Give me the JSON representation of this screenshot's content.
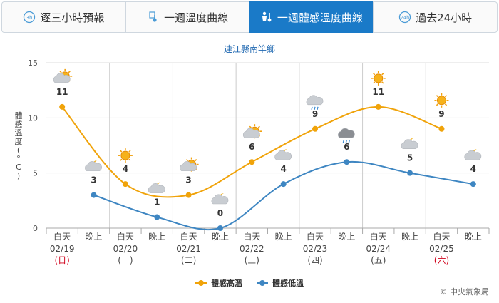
{
  "tabs": [
    {
      "label": "逐三小時預報",
      "icon": "clock-3h-icon",
      "active": false
    },
    {
      "label": "一週溫度曲線",
      "icon": "thermometer-icon",
      "active": false
    },
    {
      "label": "一週體感溫度曲線",
      "icon": "feels-like-thermometer-icon",
      "active": true
    },
    {
      "label": "過去24小時",
      "icon": "clock-24h-icon",
      "active": false
    }
  ],
  "credit": "© 中央氣象局",
  "colors": {
    "high": "#f0a30a",
    "low": "#3e86c2",
    "accent": "#1a7ac8",
    "grid": "#dddddd"
  },
  "chart_data": {
    "type": "line",
    "title": "連江縣南竿鄉",
    "ylabel": "體感溫度(°C)",
    "ylim": [
      0,
      15
    ],
    "yticks": [
      0,
      5,
      10,
      15
    ],
    "categories": [
      "白天",
      "晚上",
      "白天",
      "晚上",
      "白天",
      "晚上",
      "白天",
      "晚上",
      "白天",
      "晚上",
      "白天",
      "晚上",
      "白天",
      "晚上"
    ],
    "dates": [
      {
        "date": "02/19",
        "weekday": "(日)",
        "weekend": true
      },
      {
        "date": "02/20",
        "weekday": "(一)",
        "weekend": false
      },
      {
        "date": "02/21",
        "weekday": "(二)",
        "weekend": false
      },
      {
        "date": "02/22",
        "weekday": "(三)",
        "weekend": false
      },
      {
        "date": "02/23",
        "weekday": "(四)",
        "weekend": false
      },
      {
        "date": "02/24",
        "weekday": "(五)",
        "weekend": false
      },
      {
        "date": "02/25",
        "weekday": "(六)",
        "weekend": true
      }
    ],
    "series": [
      {
        "name": "體感高溫",
        "indices": [
          0,
          2,
          4,
          6,
          8,
          10,
          12
        ],
        "values": [
          11,
          4,
          3,
          6,
          9,
          11,
          9
        ]
      },
      {
        "name": "體感低溫",
        "indices": [
          1,
          3,
          5,
          7,
          9,
          11,
          13
        ],
        "values": [
          3,
          1,
          0,
          4,
          6,
          5,
          4
        ]
      }
    ],
    "point_labels": [
      11,
      3,
      4,
      1,
      3,
      0,
      6,
      4,
      9,
      6,
      11,
      5,
      9,
      4
    ],
    "weather_icons": [
      "partly-cloudy-day-icon",
      "partly-cloudy-night-icon",
      "sunny-icon",
      "cloudy-night-icon",
      "partly-cloudy-day-icon",
      "partly-cloudy-night-icon",
      "partly-cloudy-day-icon",
      "partly-cloudy-night-icon",
      "cloudy-rain-icon",
      "overcast-rain-icon",
      "sunny-icon",
      "partly-cloudy-night-icon",
      "sunny-icon",
      "partly-cloudy-night-icon"
    ],
    "legend_position": "bottom-center",
    "grid": true
  }
}
